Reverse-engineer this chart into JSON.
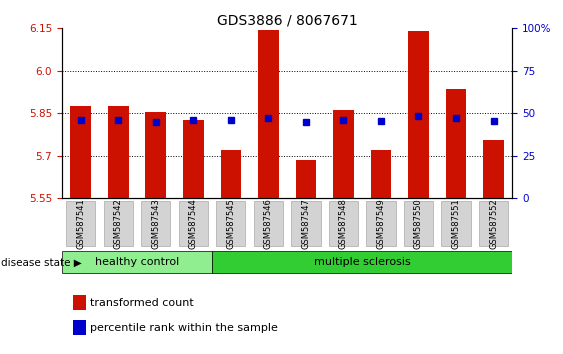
{
  "title": "GDS3886 / 8067671",
  "samples": [
    "GSM587541",
    "GSM587542",
    "GSM587543",
    "GSM587544",
    "GSM587545",
    "GSM587546",
    "GSM587547",
    "GSM587548",
    "GSM587549",
    "GSM587550",
    "GSM587551",
    "GSM587552"
  ],
  "red_values": [
    5.875,
    5.875,
    5.855,
    5.825,
    5.72,
    6.145,
    5.685,
    5.86,
    5.72,
    6.14,
    5.935,
    5.755
  ],
  "blue_values": [
    5.825,
    5.825,
    5.82,
    5.825,
    5.825,
    5.835,
    5.82,
    5.828,
    5.822,
    5.842,
    5.832,
    5.822
  ],
  "ymin": 5.55,
  "ymax": 6.15,
  "yticks_left": [
    5.55,
    5.7,
    5.85,
    6.0,
    6.15
  ],
  "group_labels": [
    "healthy control",
    "multiple sclerosis"
  ],
  "hc_count": 4,
  "bar_color": "#cc1100",
  "blue_color": "#0000cc",
  "light_green": "#90ee90",
  "dark_green": "#32cd32",
  "disease_state_label": "disease state",
  "legend1": "transformed count",
  "legend2": "percentile rank within the sample",
  "title_fontsize": 10,
  "tick_fontsize": 7.5,
  "label_fontsize": 8
}
